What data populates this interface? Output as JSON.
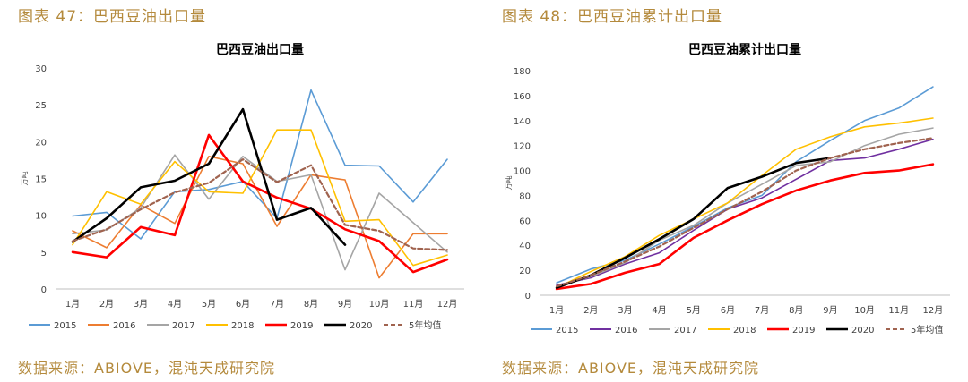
{
  "figures": [
    {
      "fig_title": "图表 47：巴西豆油出口量",
      "source": "数据来源：ABIOVE，混沌天成研究院"
    },
    {
      "fig_title": "图表 48：巴西豆油累计出口量",
      "source": "数据来源：ABIOVE，混沌天成研究院"
    }
  ],
  "chart_data": [
    {
      "type": "line",
      "title": "巴西豆油出口量",
      "xlabel": "",
      "ylabel": "万吨",
      "categories": [
        "1月",
        "2月",
        "3月",
        "4月",
        "5月",
        "6月",
        "7月",
        "8月",
        "9月",
        "10月",
        "11月",
        "12月"
      ],
      "ylim": [
        0,
        30
      ],
      "yticks": [
        0,
        5,
        10,
        15,
        20,
        25,
        30
      ],
      "grid": false,
      "legend_position": "bottom",
      "series": [
        {
          "name": "2015",
          "color": "#5b9bd5",
          "dash": false,
          "values": [
            9.9,
            10.4,
            6.8,
            13.2,
            13.5,
            14.6,
            9.6,
            27.0,
            16.8,
            16.7,
            11.8,
            17.6
          ]
        },
        {
          "name": "2016",
          "color": "#ed7d31",
          "dash": false,
          "values": [
            7.9,
            5.6,
            11.4,
            8.9,
            18.0,
            17.0,
            8.5,
            15.5,
            14.8,
            1.5,
            7.5,
            7.5
          ]
        },
        {
          "name": "2017",
          "color": "#a5a5a5",
          "dash": false,
          "values": [
            7.5,
            8.0,
            11.0,
            18.2,
            12.2,
            18.0,
            14.6,
            15.5,
            2.6,
            13.0,
            9.0,
            5.0
          ]
        },
        {
          "name": "2018",
          "color": "#ffc000",
          "dash": false,
          "values": [
            6.0,
            13.2,
            11.5,
            17.3,
            13.2,
            13.0,
            21.6,
            21.6,
            9.2,
            9.4,
            3.2,
            4.6
          ]
        },
        {
          "name": "2019",
          "color": "#ff0000",
          "dash": false,
          "values": [
            5.0,
            4.3,
            8.4,
            7.3,
            20.9,
            14.6,
            12.4,
            10.9,
            8.1,
            6.5,
            2.3,
            4.0
          ]
        },
        {
          "name": "2020",
          "color": "#000000",
          "dash": false,
          "values": [
            6.4,
            9.6,
            13.8,
            14.7,
            17.0,
            24.4,
            9.4,
            11.0,
            6.0,
            null,
            null,
            null
          ]
        },
        {
          "name": "5年均值",
          "color": "#a0634f",
          "dash": true,
          "values": [
            6.5,
            8.1,
            10.8,
            13.1,
            14.4,
            17.6,
            14.5,
            16.8,
            8.7,
            7.9,
            5.5,
            5.3
          ]
        }
      ]
    },
    {
      "type": "line",
      "title": "巴西豆油累计出口量",
      "xlabel": "",
      "ylabel": "万吨",
      "categories": [
        "1月",
        "2月",
        "3月",
        "4月",
        "5月",
        "6月",
        "7月",
        "8月",
        "9月",
        "10月",
        "11月",
        "12月"
      ],
      "ylim": [
        0,
        180
      ],
      "yticks": [
        0,
        20,
        40,
        60,
        80,
        100,
        120,
        140,
        160,
        180
      ],
      "grid": false,
      "legend_position": "bottom",
      "series": [
        {
          "name": "2015",
          "color": "#5b9bd5",
          "dash": false,
          "values": [
            10,
            21,
            28,
            41,
            55,
            70,
            80,
            107,
            124,
            140,
            150,
            167
          ]
        },
        {
          "name": "2016",
          "color": "#7030a0",
          "dash": false,
          "values": [
            8,
            14,
            25,
            34,
            52,
            69,
            78,
            93,
            108,
            110,
            117,
            125
          ]
        },
        {
          "name": "2017",
          "color": "#a5a5a5",
          "dash": false,
          "values": [
            7,
            15,
            26,
            44,
            56,
            74,
            89,
            104,
            107,
            120,
            129,
            134
          ]
        },
        {
          "name": "2018",
          "color": "#ffc000",
          "dash": false,
          "values": [
            6,
            19,
            31,
            48,
            61,
            74,
            96,
            117,
            127,
            135,
            138,
            142
          ]
        },
        {
          "name": "2019",
          "color": "#ff0000",
          "dash": false,
          "values": [
            5,
            9,
            18,
            25,
            46,
            60,
            73,
            84,
            92,
            98,
            100,
            105
          ]
        },
        {
          "name": "2020",
          "color": "#000000",
          "dash": false,
          "values": [
            6,
            16,
            30,
            45,
            61,
            86,
            95,
            106,
            110,
            null,
            null,
            null
          ]
        },
        {
          "name": "5年均值",
          "color": "#a0634f",
          "dash": true,
          "values": [
            7,
            16,
            27,
            39,
            54,
            69,
            83,
            100,
            110,
            117,
            122,
            126
          ]
        }
      ]
    }
  ]
}
